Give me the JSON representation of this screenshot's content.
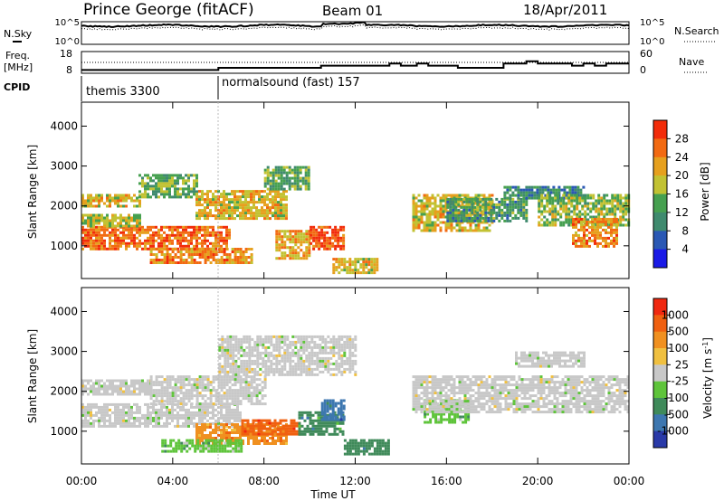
{
  "header": {
    "title": "Prince George (fitACF)",
    "beam": "Beam 01",
    "date": "18/Apr/2011"
  },
  "strips": {
    "nsky_label": "N.Sky",
    "nsearch_label": "N.Search",
    "freq_label_1": "Freq.",
    "freq_label_2": "[MHz]",
    "nave_label": "Nave",
    "cpid_label": "CPID",
    "nsky_ticks": [
      "10^5",
      "10^0"
    ],
    "nsearch_ticks": [
      "10^5",
      "10^0"
    ],
    "freq_ticks": [
      "18",
      "8"
    ],
    "nave_ticks": [
      "60",
      "0"
    ],
    "cpid_segments": [
      {
        "label": "themis 3300",
        "start_hour": 0
      },
      {
        "label": "normalsound (fast) 157",
        "start_hour": 6
      }
    ],
    "freq_steps_mhz": [
      [
        0,
        9.5
      ],
      [
        6,
        10.5
      ],
      [
        10,
        10.5
      ],
      [
        10.5,
        11.5
      ],
      [
        13,
        11.5
      ],
      [
        13.5,
        12.5
      ],
      [
        14,
        11.5
      ],
      [
        14.7,
        12.5
      ],
      [
        15.2,
        11.5
      ],
      [
        16,
        11.5
      ],
      [
        16.5,
        10.5
      ],
      [
        18.5,
        12.5
      ],
      [
        19.5,
        13.5
      ],
      [
        20,
        12.5
      ],
      [
        21.5,
        11.5
      ],
      [
        22,
        12.5
      ],
      [
        22.5,
        11.5
      ],
      [
        23,
        12.5
      ],
      [
        24,
        12.5
      ]
    ]
  },
  "chart_data": [
    {
      "type": "heatmap",
      "title": "",
      "xlabel": "Time UT",
      "ylabel": "Slant Range [km]",
      "x_ticks": [
        "00:00",
        "04:00",
        "08:00",
        "12:00",
        "16:00",
        "20:00",
        "00:00"
      ],
      "x_range_hours": [
        0,
        24
      ],
      "y_ticks": [
        "1000",
        "2000",
        "3000",
        "4000"
      ],
      "ylim": [
        180,
        4600
      ],
      "colorbar_label": "Power [dB]",
      "colorbar_ticks": [
        "4",
        "8",
        "12",
        "16",
        "20",
        "24",
        "28"
      ],
      "colorbar_range": [
        0,
        32
      ],
      "colors": [
        "#1a1ae6",
        "#2a58b4",
        "#3f8a6e",
        "#46a050",
        "#c2c233",
        "#e6a01e",
        "#f26a12",
        "#f22c0a"
      ],
      "echo_regions": [
        {
          "t": [
            0,
            6.5
          ],
          "r": [
            900,
            1500
          ],
          "v": 26
        },
        {
          "t": [
            0,
            2.5
          ],
          "r": [
            1500,
            1800
          ],
          "v": 18
        },
        {
          "t": [
            0,
            2.5
          ],
          "r": [
            2000,
            2300
          ],
          "v": 20
        },
        {
          "t": [
            2.5,
            5
          ],
          "r": [
            2200,
            2800
          ],
          "v": 14
        },
        {
          "t": [
            3,
            7.5
          ],
          "r": [
            600,
            950
          ],
          "v": 24
        },
        {
          "t": [
            5,
            9
          ],
          "r": [
            1700,
            2400
          ],
          "v": 20
        },
        {
          "t": [
            8,
            10
          ],
          "r": [
            2400,
            3000
          ],
          "v": 14
        },
        {
          "t": [
            8.5,
            10
          ],
          "r": [
            700,
            1400
          ],
          "v": 22
        },
        {
          "t": [
            10,
            11.5
          ],
          "r": [
            900,
            1500
          ],
          "v": 28
        },
        {
          "t": [
            11,
            13
          ],
          "r": [
            300,
            700
          ],
          "v": 20
        },
        {
          "t": [
            14.5,
            18
          ],
          "r": [
            1400,
            2300
          ],
          "v": 20
        },
        {
          "t": [
            16,
            19.5
          ],
          "r": [
            1600,
            2200
          ],
          "v": 12
        },
        {
          "t": [
            18.5,
            22
          ],
          "r": [
            2200,
            2500
          ],
          "v": 10
        },
        {
          "t": [
            20,
            24
          ],
          "r": [
            1500,
            2300
          ],
          "v": 16
        },
        {
          "t": [
            21.5,
            23.5
          ],
          "r": [
            1000,
            1700
          ],
          "v": 24
        }
      ]
    },
    {
      "type": "heatmap",
      "title": "",
      "xlabel": "Time UT",
      "ylabel": "Slant Range [km]",
      "x_ticks": [
        "00:00",
        "04:00",
        "08:00",
        "12:00",
        "16:00",
        "20:00",
        "00:00"
      ],
      "x_range_hours": [
        0,
        24
      ],
      "y_ticks": [
        "1000",
        "2000",
        "3000",
        "4000"
      ],
      "ylim": [
        180,
        4600
      ],
      "colorbar_label": "Velocity [m s^-1]",
      "colorbar_ticks": [
        "1000",
        "500",
        "100",
        "25",
        "-25",
        "-100",
        "-500",
        "-1000"
      ],
      "colors": [
        "#2a3aa8",
        "#3d77b0",
        "#3f8a5a",
        "#5ec43a",
        "#c8c8c8",
        "#f0c040",
        "#f09020",
        "#f06010",
        "#f02810"
      ],
      "echo_regions": [
        {
          "t": [
            0,
            7
          ],
          "r": [
            1100,
            1700
          ],
          "c": 4
        },
        {
          "t": [
            0,
            3
          ],
          "r": [
            1900,
            2300
          ],
          "c": 4
        },
        {
          "t": [
            3,
            8
          ],
          "r": [
            1700,
            2400
          ],
          "c": 4
        },
        {
          "t": [
            5,
            9
          ],
          "r": [
            700,
            1200
          ],
          "c": 6
        },
        {
          "t": [
            7,
            9.5
          ],
          "r": [
            900,
            1300
          ],
          "c": 7
        },
        {
          "t": [
            3.5,
            7
          ],
          "r": [
            500,
            800
          ],
          "c": 3
        },
        {
          "t": [
            9.5,
            11.5
          ],
          "r": [
            900,
            1500
          ],
          "c": 2
        },
        {
          "t": [
            10.5,
            11.5
          ],
          "r": [
            1300,
            1800
          ],
          "c": 1
        },
        {
          "t": [
            11.5,
            13.5
          ],
          "r": [
            400,
            800
          ],
          "c": 2
        },
        {
          "t": [
            15,
            17
          ],
          "r": [
            1200,
            1800
          ],
          "c": 3
        },
        {
          "t": [
            14.5,
            24
          ],
          "r": [
            1500,
            2400
          ],
          "c": 4
        },
        {
          "t": [
            19,
            22
          ],
          "r": [
            2600,
            3000
          ],
          "c": 4
        },
        {
          "t": [
            6,
            12
          ],
          "r": [
            2400,
            3400
          ],
          "c": 4
        }
      ]
    }
  ]
}
